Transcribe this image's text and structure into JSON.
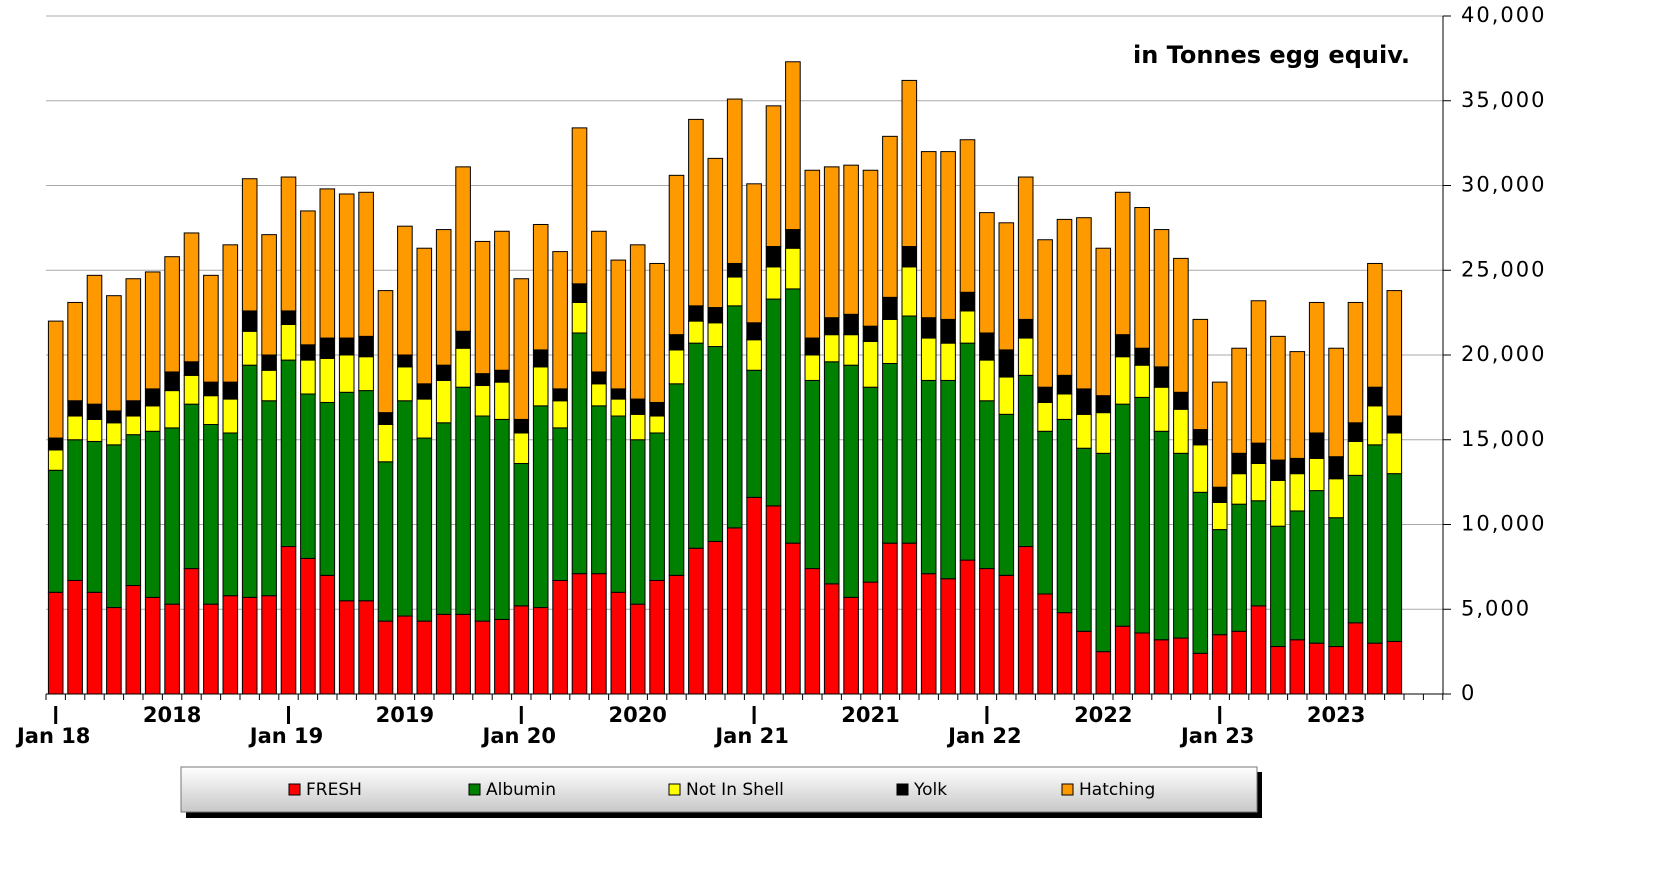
{
  "chart_data": {
    "type": "stacked_bar",
    "annotation": "in Tonnes egg equiv.",
    "categories": [
      "Jan 18",
      null,
      null,
      null,
      null,
      null,
      null,
      null,
      null,
      null,
      null,
      null,
      "Jan 19",
      null,
      null,
      null,
      null,
      null,
      null,
      null,
      null,
      null,
      null,
      null,
      "Jan 20",
      null,
      null,
      null,
      null,
      null,
      null,
      null,
      null,
      null,
      null,
      null,
      "Jan 21",
      null,
      null,
      null,
      null,
      null,
      null,
      null,
      null,
      null,
      null,
      null,
      "Jan 22",
      null,
      null,
      null,
      null,
      null,
      null,
      null,
      null,
      null,
      null,
      null,
      "Jan 23",
      null,
      null,
      null,
      null,
      null,
      null,
      null,
      null,
      null
    ],
    "year_labels": [
      "2018",
      "2019",
      "2020",
      "2021",
      "2022",
      "2023"
    ],
    "series": [
      {
        "name": "FRESH",
        "color": "#ff0000",
        "values": [
          6000,
          6700,
          6000,
          5100,
          6400,
          5700,
          5300,
          7400,
          5300,
          5800,
          5700,
          5800,
          8700,
          8000,
          7000,
          5500,
          5500,
          4300,
          4600,
          4300,
          4700,
          4700,
          4300,
          4400,
          5200,
          5100,
          6700,
          7100,
          7100,
          6000,
          5300,
          6700,
          7000,
          8600,
          9000,
          9800,
          11600,
          11100,
          8900,
          7400,
          6500,
          5700,
          6600,
          8900,
          8900,
          7100,
          6800,
          7900,
          7400,
          7000,
          8700,
          5900,
          4800,
          3700,
          2500,
          4000,
          3600,
          3200,
          3300,
          2400,
          3500,
          3700,
          5200,
          2800,
          3200,
          3000,
          2800,
          4200,
          3000,
          3100
        ]
      },
      {
        "name": "Albumin",
        "color": "#008000",
        "values": [
          7200,
          8300,
          8900,
          9600,
          8900,
          9800,
          10400,
          9700,
          10600,
          9600,
          13700,
          11500,
          11000,
          9700,
          10200,
          12300,
          12400,
          9400,
          12700,
          10800,
          11300,
          13400,
          12100,
          11800,
          8400,
          11900,
          9000,
          14200,
          9900,
          10400,
          9700,
          8700,
          11300,
          12100,
          11500,
          13100,
          7500,
          12200,
          15000,
          11100,
          13100,
          13700,
          11500,
          10600,
          13400,
          11400,
          11700,
          12800,
          9900,
          9500,
          10100,
          9600,
          11400,
          10800,
          11700,
          13100,
          13900,
          12300,
          10900,
          9500,
          6200,
          7500,
          6200,
          7100,
          7600,
          9000,
          7600,
          8700,
          11700,
          9900
        ]
      },
      {
        "name": "Not In Shell",
        "color": "#ffff00",
        "values": [
          1200,
          1400,
          1300,
          1300,
          1100,
          1500,
          2200,
          1700,
          1700,
          2000,
          2000,
          1800,
          2100,
          2000,
          2600,
          2200,
          2000,
          2200,
          2000,
          2300,
          2500,
          2300,
          1800,
          2200,
          1800,
          2300,
          1600,
          1800,
          1300,
          1000,
          1500,
          1000,
          2000,
          1300,
          1400,
          1700,
          1800,
          1900,
          2400,
          1500,
          1600,
          1800,
          2700,
          2600,
          2900,
          2500,
          2200,
          1900,
          2400,
          2200,
          2200,
          1700,
          1500,
          2000,
          2400,
          2800,
          1900,
          2600,
          2600,
          2800,
          1600,
          1800,
          2200,
          2700,
          2200,
          1900,
          2300,
          2000,
          2300,
          2400
        ]
      },
      {
        "name": "Yolk",
        "color": "#000000",
        "values": [
          700,
          900,
          900,
          700,
          900,
          1000,
          1100,
          800,
          800,
          1000,
          1200,
          900,
          800,
          900,
          1200,
          1000,
          1200,
          700,
          700,
          900,
          900,
          1000,
          700,
          700,
          800,
          1000,
          700,
          1100,
          700,
          600,
          900,
          800,
          900,
          900,
          900,
          800,
          1000,
          1200,
          1100,
          1000,
          1000,
          1200,
          900,
          1300,
          1200,
          1200,
          1400,
          1100,
          1600,
          1600,
          1100,
          900,
          1100,
          1500,
          1000,
          1300,
          1000,
          1200,
          1000,
          900,
          900,
          1200,
          1200,
          1200,
          900,
          1500,
          1300,
          1100,
          1100,
          1000
        ]
      },
      {
        "name": "Hatching",
        "color": "#ff9900",
        "values": [
          6900,
          5800,
          7600,
          6800,
          7200,
          6900,
          6800,
          7600,
          6300,
          8100,
          7800,
          7100,
          7900,
          7900,
          8800,
          8500,
          8500,
          7200,
          7600,
          8000,
          8000,
          9700,
          7800,
          8200,
          8300,
          7400,
          8100,
          9200,
          8300,
          7600,
          9100,
          8200,
          9400,
          11000,
          8800,
          9700,
          8200,
          8300,
          9900,
          9900,
          8900,
          8800,
          9200,
          9500,
          9800,
          9800,
          9900,
          9000,
          7100,
          7500,
          8400,
          8700,
          9200,
          10100,
          8700,
          8400,
          8300,
          8100,
          7900,
          6500,
          6200,
          6200,
          8400,
          7300,
          6300,
          7700,
          6400,
          7100,
          7300,
          7400
        ]
      }
    ],
    "ylim": [
      0,
      40000
    ],
    "yticks": [
      0,
      {
        "value": 5000,
        "label": "5,000"
      },
      {
        "value": 10000,
        "label": "10,000"
      },
      {
        "value": 15000,
        "label": "15,000"
      },
      {
        "value": 20000,
        "label": "20,000"
      },
      {
        "value": 25000,
        "label": "25,000"
      },
      {
        "value": 30000,
        "label": "30,000"
      },
      {
        "value": 35000,
        "label": "35,000"
      },
      {
        "value": 40000,
        "label": "40,000"
      }
    ],
    "grid": true
  }
}
